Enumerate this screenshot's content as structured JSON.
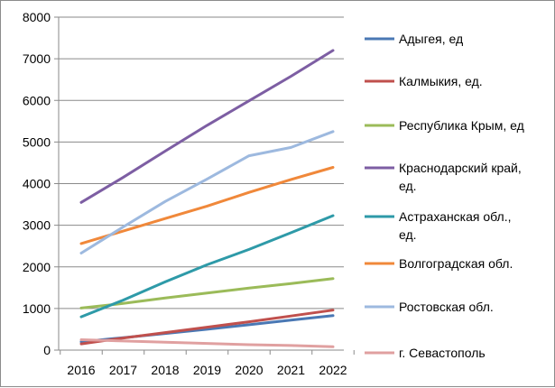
{
  "chart_data": {
    "type": "line",
    "title": "",
    "xlabel": "",
    "ylabel": "",
    "x": [
      "2016",
      "2017",
      "2018",
      "2019",
      "2020",
      "2021",
      "2022"
    ],
    "ylim": [
      0,
      8000
    ],
    "yticks": [
      0,
      1000,
      2000,
      3000,
      4000,
      5000,
      6000,
      7000,
      8000
    ],
    "grid": "horizontal",
    "legend_position": "right",
    "series": [
      {
        "name": "Адыгея, ед",
        "legend_lines": [
          "Адыгея, ед"
        ],
        "color": "#4a78b4",
        "values": [
          200,
          300,
          400,
          500,
          610,
          720,
          830
        ]
      },
      {
        "name": "Калмыкия, ед.",
        "legend_lines": [
          "Калмыкия, ед."
        ],
        "color": "#c0504d",
        "values": [
          150,
          290,
          420,
          550,
          680,
          820,
          960
        ]
      },
      {
        "name": "Республика Крым, ед",
        "legend_lines": [
          "Республика Крым, ед"
        ],
        "color": "#9bbb59",
        "values": [
          1010,
          1120,
          1250,
          1370,
          1490,
          1600,
          1720
        ]
      },
      {
        "name": "Краснодарский край, ед.",
        "legend_lines": [
          "Краснодарский край,",
          "ед."
        ],
        "color": "#7d5ea3",
        "values": [
          3550,
          4150,
          4780,
          5400,
          5990,
          6580,
          7200
        ]
      },
      {
        "name": "Астраханская обл., ед.",
        "legend_lines": [
          "Астраханская обл.,",
          "ед."
        ],
        "color": "#2e9aa8",
        "values": [
          800,
          1200,
          1640,
          2050,
          2420,
          2820,
          3230
        ]
      },
      {
        "name": "Волгоградская обл.",
        "legend_lines": [
          "Волгоградская обл."
        ],
        "color": "#f0883a",
        "values": [
          2560,
          2860,
          3160,
          3460,
          3790,
          4100,
          4390
        ]
      },
      {
        "name": "Ростовская обл.",
        "legend_lines": [
          "Ростовская обл."
        ],
        "color": "#9db9df",
        "values": [
          2330,
          2960,
          3570,
          4110,
          4670,
          4870,
          5250
        ]
      },
      {
        "name": "г. Севастополь",
        "legend_lines": [
          "г. Севастополь"
        ],
        "color": "#e0a0a0",
        "values": [
          250,
          220,
          190,
          160,
          130,
          110,
          80
        ]
      }
    ]
  }
}
